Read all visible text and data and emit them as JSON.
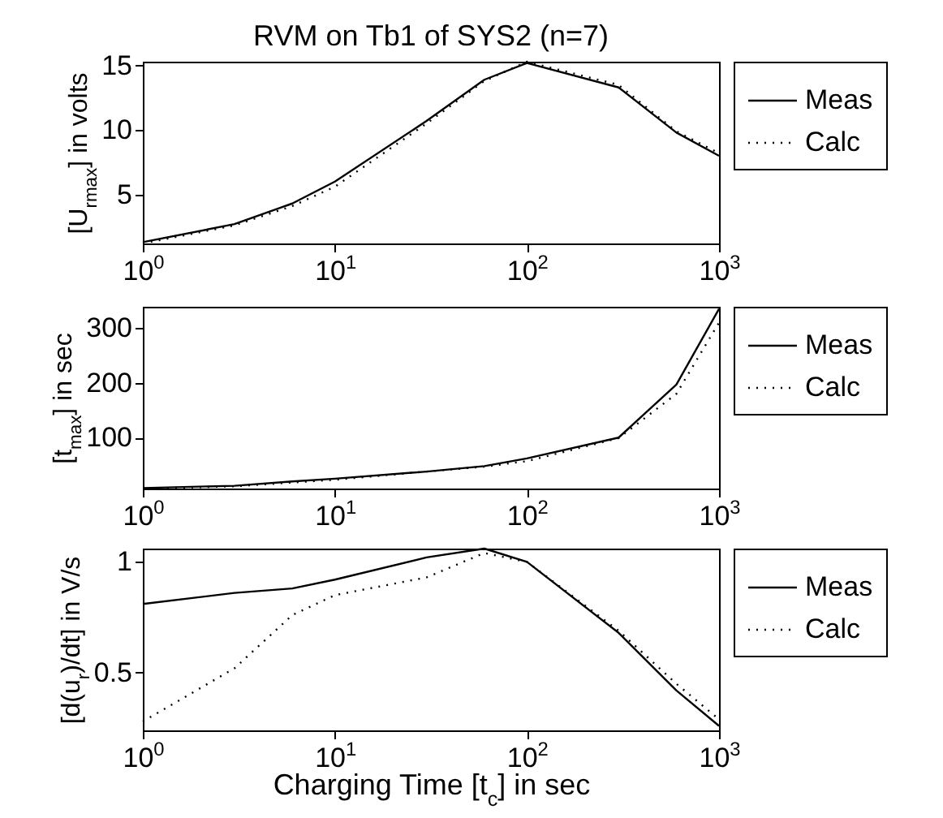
{
  "chart_data": [
    {
      "type": "line",
      "title": "RVM on Tb1 of SYS2 (n=7)",
      "ylabel": "[U$_{rmax}$] in volts",
      "log": "x",
      "grid": false,
      "legend": "right",
      "x": [
        1,
        3,
        6,
        10,
        30,
        60,
        100,
        300,
        600,
        1000
      ],
      "xlim": [
        1,
        1000
      ],
      "xticks": [
        {
          "value": 1,
          "label": "10$^{0}$"
        },
        {
          "value": 10,
          "label": "10$^{1}$"
        },
        {
          "value": 100,
          "label": "10$^{2}$"
        },
        {
          "value": 1000,
          "label": "10$^{3}$"
        }
      ],
      "ylim": [
        1.2,
        15.3
      ],
      "yticks": [
        5,
        10,
        15
      ],
      "series": [
        {
          "name": "Meas",
          "color": "#000000",
          "line_style": "solid",
          "values": [
            1.3,
            2.7,
            4.3,
            6.0,
            10.7,
            13.9,
            15.2,
            13.3,
            9.8,
            8.0
          ]
        },
        {
          "name": "Calc",
          "color": "#000000",
          "line_style": "dotted",
          "values": [
            1.2,
            2.6,
            4.1,
            5.6,
            10.5,
            13.8,
            15.3,
            13.5,
            9.9,
            8.2
          ]
        }
      ]
    },
    {
      "type": "line",
      "ylabel": "[t$_{max}$] in sec",
      "log": "x",
      "grid": false,
      "legend": "right",
      "x": [
        1,
        3,
        6,
        10,
        30,
        60,
        100,
        300,
        600,
        1000
      ],
      "xlim": [
        1,
        1000
      ],
      "xticks": [
        {
          "value": 1,
          "label": "10$^{0}$"
        },
        {
          "value": 10,
          "label": "10$^{1}$"
        },
        {
          "value": 100,
          "label": "10$^{2}$"
        },
        {
          "value": 1000,
          "label": "10$^{3}$"
        }
      ],
      "ylim": [
        7,
        339
      ],
      "yticks": [
        100,
        200,
        300
      ],
      "series": [
        {
          "name": "Meas",
          "color": "#000000",
          "line_style": "solid",
          "values": [
            8,
            12,
            20,
            25,
            38,
            48,
            62,
            100,
            197,
            335
          ]
        },
        {
          "name": "Calc",
          "color": "#000000",
          "line_style": "dotted",
          "values": [
            7,
            11,
            18,
            23,
            38,
            47,
            57,
            99,
            180,
            310
          ]
        }
      ]
    },
    {
      "type": "line",
      "xlabel": "Charging Time [t$_{c}$] in sec",
      "ylabel": "[d(u$_{r}$)/dt] in V/s",
      "log": "x",
      "grid": false,
      "legend": "right",
      "x": [
        1,
        3,
        6,
        10,
        30,
        60,
        100,
        300,
        600,
        1000
      ],
      "xlim": [
        1,
        1000
      ],
      "xticks": [
        {
          "value": 1,
          "label": "10$^{0}$"
        },
        {
          "value": 10,
          "label": "10$^{1}$"
        },
        {
          "value": 100,
          "label": "10$^{2}$"
        },
        {
          "value": 1000,
          "label": "10$^{3}$"
        }
      ],
      "ylim": [
        0.24,
        1.06
      ],
      "yticks": [
        0.5,
        1
      ],
      "series": [
        {
          "name": "Meas",
          "color": "#000000",
          "line_style": "solid",
          "values": [
            0.81,
            0.86,
            0.88,
            0.92,
            1.02,
            1.06,
            1.0,
            0.68,
            0.42,
            0.26
          ]
        },
        {
          "name": "Calc",
          "color": "#000000",
          "line_style": "dotted",
          "values": [
            0.28,
            0.52,
            0.76,
            0.85,
            0.93,
            1.04,
            1.0,
            0.69,
            0.45,
            0.29
          ]
        }
      ]
    }
  ]
}
